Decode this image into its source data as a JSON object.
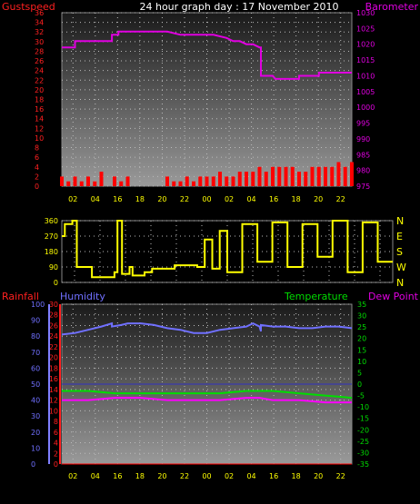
{
  "header": {
    "left": "Gustspeed",
    "center": "24 hour graph day : 17 November 2010",
    "right": "Barometer"
  },
  "x_tick_labels": [
    "02",
    "04",
    "16",
    "18",
    "20",
    "22",
    "00",
    "02",
    "04",
    "16",
    "18",
    "20",
    "22"
  ],
  "bottom_headers": {
    "rainfall": "Rainfall",
    "humidity": "Humidity",
    "temperature": "Temperature",
    "dewpoint": "Dew Point"
  },
  "colors": {
    "gust": "#ff0000",
    "wind_avg": "#ccffcc",
    "barometer": "#e000e0",
    "direction": "#ffff00",
    "rainfall": "#ff0000",
    "humidity": "#7070ff",
    "temperature": "#00dd00",
    "dewpoint": "#ff00ff",
    "x_labels": "#ffff00"
  },
  "chart_data": [
    {
      "type": "line",
      "title": "",
      "left_axis": {
        "label": "Gustspeed",
        "ylim": [
          0,
          36
        ],
        "ticks": [
          0,
          2,
          4,
          6,
          8,
          10,
          12,
          14,
          16,
          18,
          20,
          22,
          24,
          26,
          28,
          30,
          32,
          34,
          36
        ]
      },
      "right_axis": {
        "label": "Barometer",
        "ylim": [
          975,
          1030
        ],
        "ticks": [
          975,
          980,
          985,
          990,
          995,
          1000,
          1005,
          1010,
          1015,
          1020,
          1025,
          1030
        ]
      },
      "grid": true,
      "series": [
        {
          "name": "Barometer",
          "axis": "right",
          "x": [
            0,
            1.0,
            1.0,
            3.8,
            3.8,
            4.3,
            4.3,
            6.8,
            7.0,
            8.0,
            9.0,
            10.0,
            11.5,
            12.5,
            13.0,
            13.5,
            14.0,
            14.5,
            15.0,
            15.1,
            15.1,
            16.0,
            16.2,
            18.0,
            18.0,
            19.5,
            19.5,
            22.0
          ],
          "values": [
            1019,
            1019,
            1021,
            1021,
            1023,
            1023,
            1024,
            1024,
            1024,
            1024,
            1023,
            1023,
            1023,
            1022,
            1021,
            1021,
            1020,
            1020,
            1019,
            1019,
            1010,
            1010,
            1009,
            1009,
            1010,
            1010,
            1011,
            1011
          ]
        },
        {
          "name": "Gustspeed",
          "axis": "left",
          "x": [
            0,
            0.5,
            1.0,
            1.5,
            2.0,
            2.5,
            3.0,
            3.5,
            4.0,
            4.5,
            5.0,
            5.5,
            6.0,
            6.5,
            7.0,
            7.5,
            8.0,
            8.5,
            9.0,
            9.5,
            10.0,
            10.5,
            11.0,
            11.5,
            12.0,
            12.5,
            13.0,
            13.5,
            14.0,
            14.5,
            15.0,
            15.5,
            16.0,
            16.5,
            17.0,
            17.5,
            18.0,
            18.5,
            19.0,
            19.5,
            20.0,
            20.5,
            21.0,
            21.5,
            22.0
          ],
          "values": [
            2,
            1,
            2,
            1,
            2,
            1,
            3,
            0,
            2,
            1,
            2,
            0,
            0,
            0,
            0,
            0,
            2,
            1,
            1,
            2,
            1,
            2,
            2,
            2,
            3,
            2,
            2,
            3,
            3,
            3,
            4,
            3,
            4,
            4,
            4,
            4,
            3,
            3,
            4,
            4,
            4,
            4,
            5,
            4,
            5
          ]
        }
      ]
    },
    {
      "type": "line",
      "title": "",
      "left_axis": {
        "ylim": [
          0,
          360
        ],
        "ticks": [
          0,
          90,
          180,
          270,
          360
        ]
      },
      "right_axis": {
        "labels": [
          "N",
          "W",
          "S",
          "E",
          "N"
        ]
      },
      "grid": true,
      "series": [
        {
          "name": "Wind direction",
          "x": [
            0,
            0.2,
            0.2,
            0.7,
            0.7,
            1.0,
            1.0,
            2.0,
            2.0,
            3.5,
            3.5,
            3.7,
            3.7,
            4.0,
            4.0,
            4.5,
            4.5,
            4.7,
            4.7,
            5.5,
            5.5,
            6.0,
            6.0,
            7.5,
            7.5,
            9.0,
            9.0,
            9.5,
            9.5,
            10.0,
            10.0,
            10.5,
            10.5,
            11.0,
            11.0,
            12.0,
            12.0,
            13.0,
            13.0,
            14.0,
            14.0,
            15.0,
            15.0,
            16.0,
            16.0,
            17.0,
            17.0,
            18.0,
            18.0,
            19.0,
            19.0,
            20.0,
            20.0,
            21.0,
            21.0,
            22.0
          ],
          "values": [
            270,
            270,
            340,
            340,
            360,
            360,
            90,
            90,
            30,
            30,
            60,
            60,
            360,
            360,
            50,
            50,
            90,
            90,
            40,
            40,
            60,
            60,
            80,
            80,
            100,
            100,
            90,
            90,
            250,
            250,
            80,
            80,
            300,
            300,
            60,
            60,
            340,
            340,
            120,
            120,
            350,
            350,
            90,
            90,
            340,
            340,
            150,
            150,
            360,
            360,
            60,
            60,
            350,
            350,
            120,
            120
          ]
        }
      ]
    },
    {
      "type": "line",
      "title": "",
      "left_axis_rainfall": {
        "label": "Rainfall",
        "ylim": [
          0,
          30
        ],
        "ticks": [
          0,
          2,
          4,
          6,
          8,
          10,
          12,
          14,
          16,
          18,
          20,
          22,
          24,
          26,
          28,
          30
        ]
      },
      "left_axis_humidity": {
        "label": "Humidity",
        "ylim": [
          0,
          100
        ],
        "ticks": [
          0,
          10,
          20,
          30,
          40,
          50,
          60,
          70,
          80,
          90,
          100
        ]
      },
      "right_axis": {
        "label": "Temperature",
        "ylim": [
          -35,
          35
        ],
        "ticks": [
          -35,
          -30,
          -25,
          -20,
          -15,
          -10,
          -5,
          0,
          5,
          10,
          15,
          20,
          25,
          30,
          35
        ]
      },
      "grid": true,
      "series": [
        {
          "name": "Humidity",
          "axis": "humidity",
          "x": [
            0,
            1,
            2,
            3,
            3.8,
            3.8,
            4.5,
            5,
            6,
            7,
            8,
            9,
            10,
            11,
            12,
            13,
            14,
            14.5,
            15,
            15.1,
            15.1,
            16,
            17,
            18,
            19,
            20,
            21,
            22
          ],
          "values": [
            81,
            82,
            84,
            86,
            88,
            86,
            87,
            88,
            88,
            87,
            85,
            84,
            82,
            82,
            84,
            85,
            86,
            88,
            86,
            83,
            87,
            86,
            86,
            85,
            85,
            86,
            86,
            85
          ]
        },
        {
          "name": "Temperature",
          "axis": "right",
          "x": [
            0,
            2,
            4,
            6,
            8,
            10,
            12,
            14,
            15,
            16,
            18,
            20,
            22
          ],
          "values": [
            -3,
            -3,
            -4,
            -4,
            -4,
            -4,
            -4,
            -3,
            -3,
            -3,
            -4,
            -5,
            -6
          ]
        },
        {
          "name": "Dew Point",
          "axis": "right",
          "x": [
            0,
            2,
            4,
            6,
            8,
            10,
            12,
            14,
            15,
            16,
            18,
            20,
            22
          ],
          "values": [
            -7,
            -7,
            -6,
            -6,
            -7,
            -7,
            -7,
            -6,
            -6,
            -7,
            -7,
            -8,
            -8
          ]
        },
        {
          "name": "Rainfall",
          "axis": "rainfall",
          "x": [
            0,
            22
          ],
          "values": [
            0,
            0
          ]
        }
      ]
    }
  ]
}
